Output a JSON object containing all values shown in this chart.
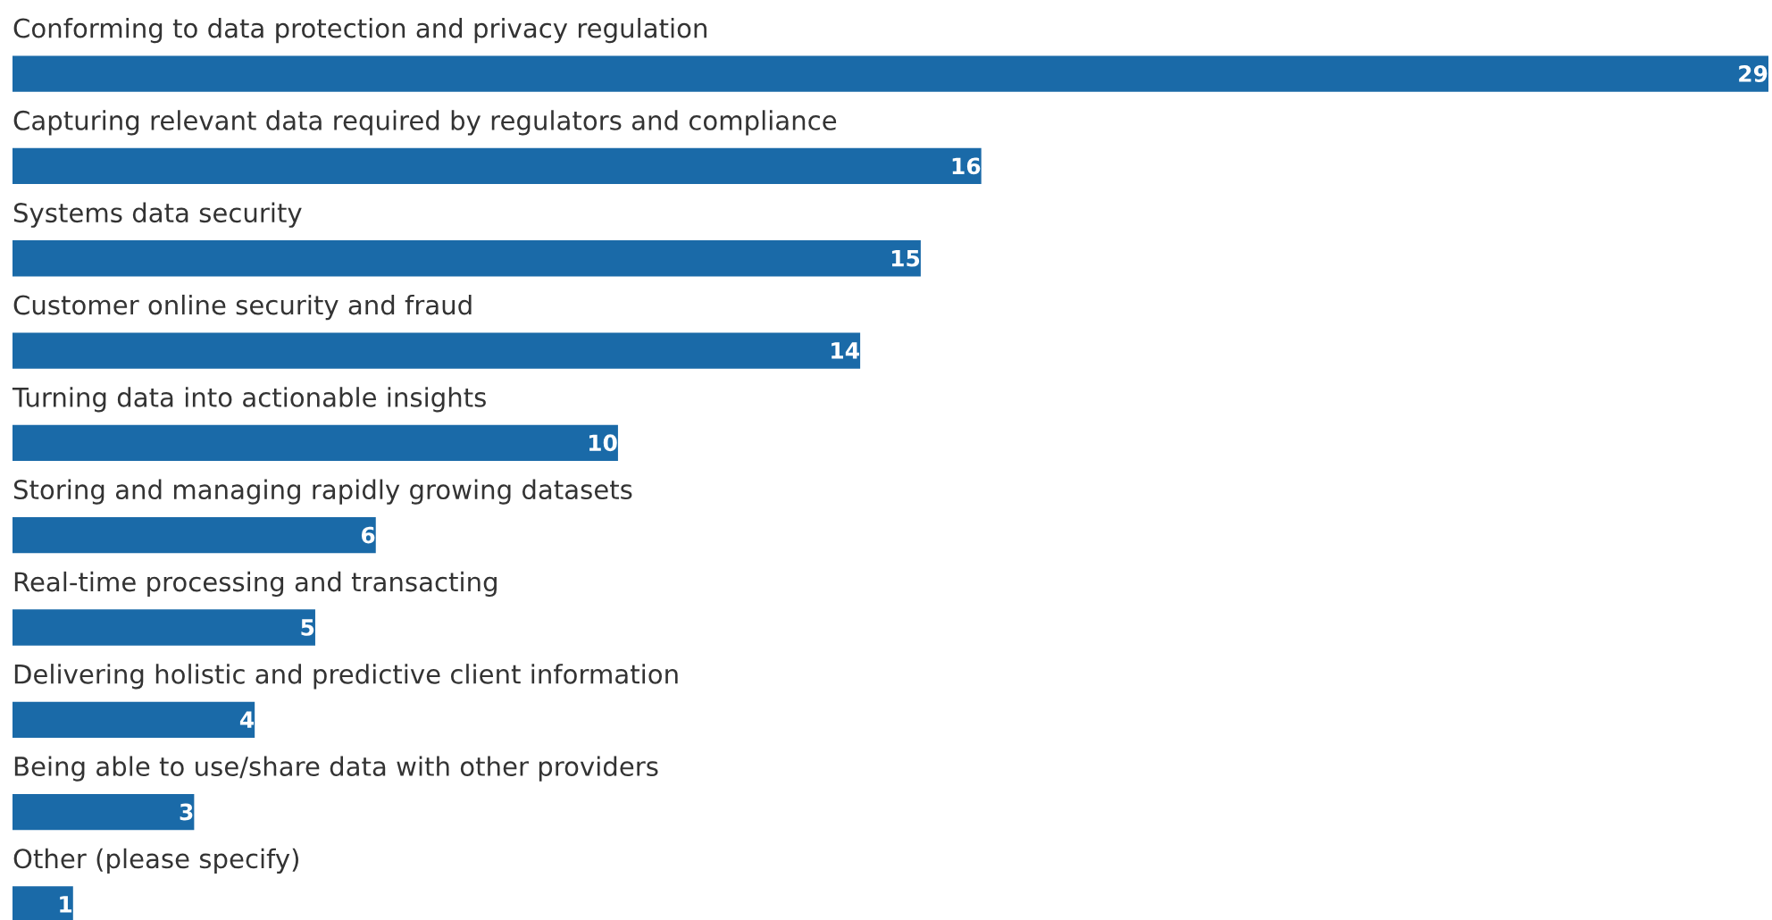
{
  "chart_data": {
    "type": "bar",
    "orientation": "horizontal",
    "categories": [
      "Conforming to data protection and privacy regulation",
      "Capturing relevant data required by regulators and compliance",
      "Systems data security",
      "Customer online security and fraud",
      "Turning data into actionable insights",
      "Storing and managing rapidly growing datasets",
      "Real-time processing and transacting",
      "Delivering holistic and predictive client information",
      "Being able to use/share data with other providers",
      "Other (please specify)"
    ],
    "values": [
      29,
      16,
      15,
      14,
      10,
      6,
      5,
      4,
      3,
      1
    ],
    "color": "#1a6aa8",
    "data_labels": true
  }
}
